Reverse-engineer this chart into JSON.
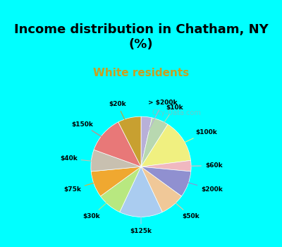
{
  "title": "Income distribution in Chatham, NY\n(%)",
  "subtitle": "White residents",
  "title_color": "#000000",
  "subtitle_color": "#c8a020",
  "background_top": "#00ffff",
  "background_chart": "#e8f5f0",
  "labels": [
    "> $200k",
    "$10k",
    "$100k",
    "$60k",
    "$200k",
    "$50k",
    "$125k",
    "$30k",
    "$75k",
    "$40k",
    "$150k",
    "$20k"
  ],
  "values": [
    3.5,
    5.5,
    14.0,
    3.5,
    8.5,
    8.0,
    14.0,
    8.0,
    8.5,
    7.0,
    12.0,
    7.5
  ],
  "colors": [
    "#b8b0d8",
    "#b8d8b0",
    "#f0f080",
    "#f0b8c0",
    "#9090d0",
    "#f0c898",
    "#aaccf0",
    "#b8e880",
    "#f0a830",
    "#c8c0b0",
    "#e87878",
    "#c8a030"
  ],
  "label_colors": [
    "#000000",
    "#000000",
    "#000000",
    "#000000",
    "#000000",
    "#000000",
    "#000000",
    "#000000",
    "#000000",
    "#000000",
    "#000000",
    "#000000"
  ],
  "watermark": "City-Data.com"
}
